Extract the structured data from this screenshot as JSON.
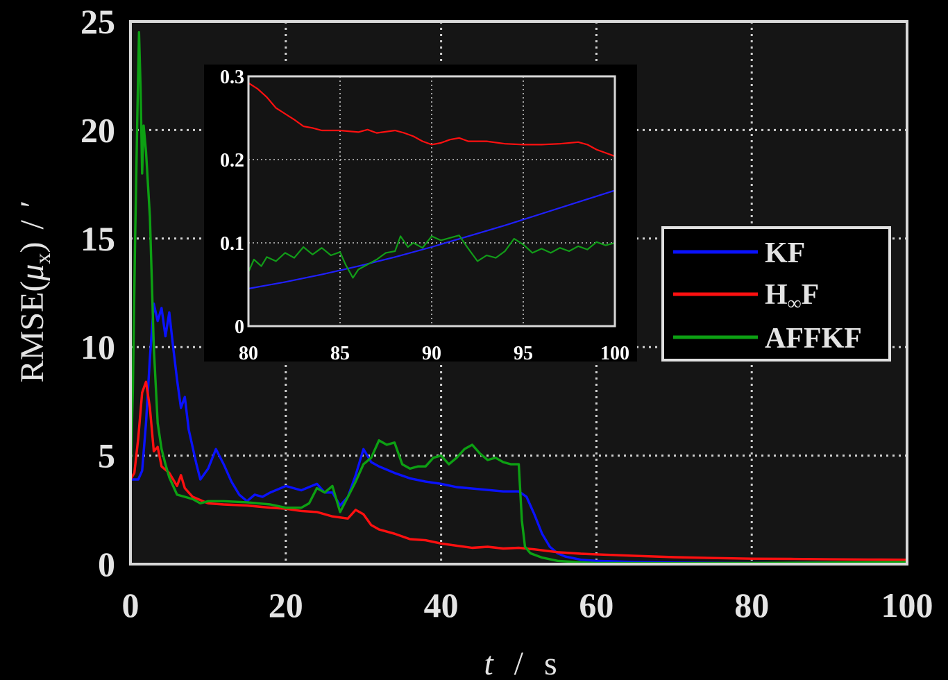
{
  "chart_data": [
    {
      "type": "line",
      "title": "",
      "xlabel": "t / s",
      "xlabel_parts": [
        "t",
        "/",
        "s"
      ],
      "ylabel": "RMSE(μx) / ′",
      "ylabel_parts": [
        "RMSE(",
        "μ",
        "x",
        ")",
        "/",
        "′"
      ],
      "xlim": [
        0,
        100
      ],
      "ylim": [
        0,
        25
      ],
      "xticks": [
        0,
        20,
        40,
        60,
        80,
        100
      ],
      "yticks": [
        0,
        5,
        10,
        15,
        20,
        25
      ],
      "xtick_labels": [
        "0",
        "20",
        "40",
        "60",
        "80",
        "100"
      ],
      "ytick_labels": [
        "0",
        "5",
        "10",
        "15",
        "20",
        "25"
      ],
      "grid": true,
      "background": "#151515",
      "legend": {
        "position": "right",
        "entries": [
          {
            "label": "KF",
            "color": "#0a12ff"
          },
          {
            "label": "H∞F",
            "label_parts": [
              "H",
              "∞",
              "F"
            ],
            "color": "#ff1010"
          },
          {
            "label": "AFFKF",
            "color": "#0da013"
          }
        ]
      },
      "series": [
        {
          "name": "KF",
          "color": "#0a12ff",
          "points": [
            [
              0,
              3.9
            ],
            [
              1,
              3.9
            ],
            [
              1.5,
              4.3
            ],
            [
              2,
              6.5
            ],
            [
              2.5,
              9.5
            ],
            [
              3,
              12
            ],
            [
              3.5,
              11.2
            ],
            [
              4,
              11.8
            ],
            [
              4.5,
              10.5
            ],
            [
              5,
              11.6
            ],
            [
              5.5,
              10
            ],
            [
              6,
              8.5
            ],
            [
              6.5,
              7.2
            ],
            [
              7,
              7.7
            ],
            [
              7.5,
              6.2
            ],
            [
              8,
              5.4
            ],
            [
              8.5,
              4.6
            ],
            [
              9,
              3.9
            ],
            [
              10,
              4.4
            ],
            [
              11,
              5.3
            ],
            [
              12,
              4.6
            ],
            [
              13,
              3.8
            ],
            [
              14,
              3.2
            ],
            [
              15,
              2.9
            ],
            [
              16,
              3.2
            ],
            [
              17,
              3.1
            ],
            [
              18,
              3.3
            ],
            [
              20,
              3.6
            ],
            [
              22,
              3.4
            ],
            [
              24,
              3.7
            ],
            [
              25,
              3.3
            ],
            [
              26,
              3.3
            ],
            [
              27,
              2.7
            ],
            [
              28,
              3.1
            ],
            [
              29,
              4.1
            ],
            [
              30,
              5.3
            ],
            [
              31,
              4.7
            ],
            [
              32,
              4.5
            ],
            [
              34,
              4.2
            ],
            [
              36,
              3.95
            ],
            [
              38,
              3.8
            ],
            [
              40,
              3.7
            ],
            [
              42,
              3.55
            ],
            [
              45,
              3.45
            ],
            [
              48,
              3.35
            ],
            [
              50,
              3.35
            ],
            [
              51,
              3.1
            ],
            [
              52,
              2.3
            ],
            [
              53,
              1.4
            ],
            [
              54,
              0.8
            ],
            [
              55,
              0.5
            ],
            [
              56,
              0.35
            ],
            [
              58,
              0.2
            ],
            [
              60,
              0.15
            ],
            [
              65,
              0.1
            ],
            [
              70,
              0.07
            ],
            [
              80,
              0.05
            ],
            [
              90,
              0.07
            ],
            [
              100,
              0.08
            ]
          ]
        },
        {
          "name": "H∞F",
          "color": "#ff1010",
          "points": [
            [
              0,
              3.9
            ],
            [
              0.5,
              4.2
            ],
            [
              1,
              5.8
            ],
            [
              1.5,
              7.9
            ],
            [
              2,
              8.4
            ],
            [
              2.5,
              7.2
            ],
            [
              3,
              5.2
            ],
            [
              3.5,
              5.4
            ],
            [
              4,
              4.5
            ],
            [
              5,
              4.2
            ],
            [
              6,
              3.6
            ],
            [
              6.5,
              4.1
            ],
            [
              7,
              3.5
            ],
            [
              8,
              3.1
            ],
            [
              10,
              2.8
            ],
            [
              12,
              2.75
            ],
            [
              15,
              2.7
            ],
            [
              18,
              2.6
            ],
            [
              20,
              2.55
            ],
            [
              22,
              2.45
            ],
            [
              24,
              2.4
            ],
            [
              26,
              2.2
            ],
            [
              28,
              2.1
            ],
            [
              29,
              2.5
            ],
            [
              30,
              2.3
            ],
            [
              31,
              1.8
            ],
            [
              32,
              1.6
            ],
            [
              34,
              1.4
            ],
            [
              36,
              1.15
            ],
            [
              38,
              1.1
            ],
            [
              40,
              0.95
            ],
            [
              42,
              0.85
            ],
            [
              44,
              0.75
            ],
            [
              46,
              0.8
            ],
            [
              48,
              0.72
            ],
            [
              50,
              0.75
            ],
            [
              52,
              0.68
            ],
            [
              55,
              0.55
            ],
            [
              58,
              0.48
            ],
            [
              60,
              0.45
            ],
            [
              65,
              0.38
            ],
            [
              70,
              0.32
            ],
            [
              75,
              0.28
            ],
            [
              80,
              0.25
            ],
            [
              85,
              0.24
            ],
            [
              90,
              0.22
            ],
            [
              95,
              0.21
            ],
            [
              100,
              0.2
            ]
          ]
        },
        {
          "name": "AFFKF",
          "color": "#0da013",
          "points": [
            [
              0,
              3.8
            ],
            [
              0.3,
              8
            ],
            [
              0.6,
              15
            ],
            [
              0.9,
              21
            ],
            [
              1.1,
              24.5
            ],
            [
              1.3,
              22
            ],
            [
              1.5,
              18
            ],
            [
              1.7,
              20.2
            ],
            [
              2,
              19
            ],
            [
              2.5,
              16
            ],
            [
              3,
              10
            ],
            [
              3.5,
              6.5
            ],
            [
              4,
              5.3
            ],
            [
              4.5,
              4.6
            ],
            [
              5,
              4
            ],
            [
              5.5,
              3.6
            ],
            [
              6,
              3.2
            ],
            [
              7,
              3.1
            ],
            [
              8,
              3
            ],
            [
              9,
              2.8
            ],
            [
              10,
              2.9
            ],
            [
              12,
              2.9
            ],
            [
              15,
              2.85
            ],
            [
              18,
              2.75
            ],
            [
              20,
              2.6
            ],
            [
              22,
              2.6
            ],
            [
              23,
              2.8
            ],
            [
              24,
              3.5
            ],
            [
              25,
              3.3
            ],
            [
              26,
              3.6
            ],
            [
              27,
              2.4
            ],
            [
              28,
              3.1
            ],
            [
              29,
              3.8
            ],
            [
              30,
              4.6
            ],
            [
              31,
              4.9
            ],
            [
              32,
              5.7
            ],
            [
              33,
              5.5
            ],
            [
              34,
              5.6
            ],
            [
              35,
              4.6
            ],
            [
              36,
              4.4
            ],
            [
              37,
              4.5
            ],
            [
              38,
              4.5
            ],
            [
              39,
              4.9
            ],
            [
              40,
              5.0
            ],
            [
              41,
              4.6
            ],
            [
              42,
              4.9
            ],
            [
              43,
              5.3
            ],
            [
              44,
              5.5
            ],
            [
              45,
              5.1
            ],
            [
              46,
              4.8
            ],
            [
              47,
              4.9
            ],
            [
              48,
              4.7
            ],
            [
              49,
              4.6
            ],
            [
              50,
              4.6
            ],
            [
              50.4,
              2
            ],
            [
              50.8,
              0.8
            ],
            [
              51.5,
              0.5
            ],
            [
              53,
              0.3
            ],
            [
              55,
              0.15
            ],
            [
              58,
              0.08
            ],
            [
              60,
              0.05
            ],
            [
              70,
              0.04
            ],
            [
              80,
              0.05
            ],
            [
              90,
              0.07
            ],
            [
              100,
              0.1
            ]
          ]
        }
      ]
    },
    {
      "type": "line",
      "title": "",
      "xlabel": "",
      "ylabel": "",
      "xlim": [
        80,
        100
      ],
      "ylim": [
        0,
        0.3
      ],
      "xticks": [
        80,
        85,
        90,
        95,
        100
      ],
      "yticks": [
        0,
        0.1,
        0.2,
        0.3
      ],
      "xtick_labels": [
        "80",
        "85",
        "90",
        "95",
        "100"
      ],
      "ytick_labels": [
        "0",
        "0.1",
        "0.2",
        "0.3"
      ],
      "grid": true,
      "background": "#141414",
      "series": [
        {
          "color": "#2020ff",
          "points": [
            [
              80,
              0.045
            ],
            [
              82,
              0.053
            ],
            [
              84,
              0.062
            ],
            [
              86,
              0.072
            ],
            [
              88,
              0.083
            ],
            [
              90,
              0.095
            ],
            [
              92,
              0.108
            ],
            [
              94,
              0.121
            ],
            [
              96,
              0.135
            ],
            [
              98,
              0.149
            ],
            [
              100,
              0.163
            ]
          ]
        },
        {
          "color": "#ff1010",
          "points": [
            [
              80,
              0.292
            ],
            [
              80.5,
              0.285
            ],
            [
              81,
              0.275
            ],
            [
              81.5,
              0.262
            ],
            [
              82,
              0.255
            ],
            [
              82.5,
              0.248
            ],
            [
              83,
              0.24
            ],
            [
              83.5,
              0.238
            ],
            [
              84,
              0.235
            ],
            [
              85,
              0.235
            ],
            [
              86,
              0.233
            ],
            [
              86.5,
              0.236
            ],
            [
              87,
              0.232
            ],
            [
              88,
              0.235
            ],
            [
              88.5,
              0.232
            ],
            [
              89,
              0.228
            ],
            [
              89.5,
              0.222
            ],
            [
              90,
              0.218
            ],
            [
              90.5,
              0.22
            ],
            [
              91,
              0.224
            ],
            [
              91.5,
              0.226
            ],
            [
              92,
              0.222
            ],
            [
              93,
              0.222
            ],
            [
              94,
              0.219
            ],
            [
              95,
              0.218
            ],
            [
              96,
              0.218
            ],
            [
              97,
              0.219
            ],
            [
              98,
              0.221
            ],
            [
              98.5,
              0.218
            ],
            [
              99,
              0.212
            ],
            [
              99.5,
              0.208
            ],
            [
              100,
              0.204
            ]
          ]
        },
        {
          "color": "#119c18",
          "points": [
            [
              80,
              0.065
            ],
            [
              80.3,
              0.08
            ],
            [
              80.7,
              0.072
            ],
            [
              81,
              0.083
            ],
            [
              81.5,
              0.078
            ],
            [
              82,
              0.088
            ],
            [
              82.5,
              0.082
            ],
            [
              83,
              0.095
            ],
            [
              83.5,
              0.086
            ],
            [
              84,
              0.094
            ],
            [
              84.5,
              0.085
            ],
            [
              85,
              0.089
            ],
            [
              85.3,
              0.074
            ],
            [
              85.7,
              0.058
            ],
            [
              86,
              0.068
            ],
            [
              86.5,
              0.074
            ],
            [
              87,
              0.08
            ],
            [
              87.5,
              0.088
            ],
            [
              88,
              0.09
            ],
            [
              88.3,
              0.108
            ],
            [
              88.7,
              0.095
            ],
            [
              89,
              0.1
            ],
            [
              89.5,
              0.094
            ],
            [
              90,
              0.108
            ],
            [
              90.5,
              0.103
            ],
            [
              91,
              0.106
            ],
            [
              91.5,
              0.109
            ],
            [
              92,
              0.093
            ],
            [
              92.5,
              0.078
            ],
            [
              93,
              0.085
            ],
            [
              93.5,
              0.082
            ],
            [
              94,
              0.09
            ],
            [
              94.5,
              0.105
            ],
            [
              95,
              0.098
            ],
            [
              95.5,
              0.088
            ],
            [
              96,
              0.093
            ],
            [
              96.5,
              0.088
            ],
            [
              97,
              0.094
            ],
            [
              97.5,
              0.09
            ],
            [
              98,
              0.096
            ],
            [
              98.5,
              0.092
            ],
            [
              99,
              0.101
            ],
            [
              99.5,
              0.097
            ],
            [
              100,
              0.1
            ]
          ]
        }
      ]
    }
  ]
}
